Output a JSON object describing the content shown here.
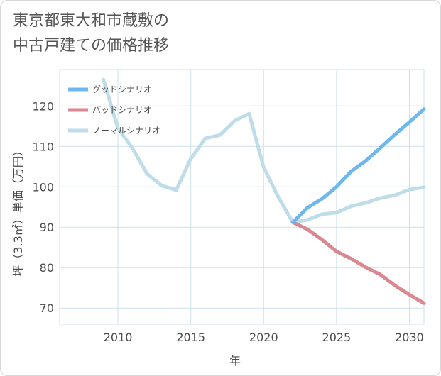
{
  "title_lines": [
    "東京都東大和市蔵敷の",
    "中古戸建ての価格推移"
  ],
  "chart_data": {
    "type": "line",
    "title": "東京都東大和市蔵敷の中古戸建ての価格推移",
    "xlabel": "年",
    "ylabel": "坪（3.3㎡）単価（万円）",
    "xlim": [
      2006,
      2031
    ],
    "ylim": [
      66,
      129
    ],
    "xticks": [
      2010,
      2015,
      2020,
      2025,
      2030
    ],
    "yticks": [
      70,
      80,
      90,
      100,
      110,
      120
    ],
    "grid": true,
    "legend_position": "top-left",
    "series": [
      {
        "name": "グッドシナリオ",
        "color": "#6db8ec",
        "x": [
          2022,
          2023,
          2024,
          2025,
          2026,
          2027,
          2028,
          2029,
          2030,
          2031
        ],
        "y": [
          91.2,
          94.8,
          97.0,
          100.0,
          103.8,
          106.4,
          109.6,
          112.9,
          116.0,
          119.2
        ]
      },
      {
        "name": "バッドシナリオ",
        "color": "#d98890",
        "x": [
          2022,
          2023,
          2024,
          2025,
          2026,
          2027,
          2028,
          2029,
          2030,
          2031
        ],
        "y": [
          91.2,
          89.5,
          86.9,
          84.0,
          82.2,
          80.1,
          78.3,
          75.6,
          73.3,
          71.2
        ]
      },
      {
        "name": "ノーマルシナリオ",
        "color": "#bfdde9",
        "x": [
          2009,
          2010,
          2011,
          2012,
          2013,
          2014,
          2015,
          2016,
          2017,
          2018,
          2019,
          2020,
          2021,
          2022,
          2023,
          2024,
          2025,
          2026,
          2027,
          2028,
          2029,
          2030,
          2031
        ],
        "y": [
          126.5,
          114.5,
          109.5,
          103.2,
          100.3,
          99.2,
          107.0,
          112.0,
          112.8,
          116.3,
          118.1,
          104.8,
          97.5,
          91.2,
          91.8,
          93.2,
          93.6,
          95.2,
          96.0,
          97.2,
          97.9,
          99.3,
          99.9
        ]
      }
    ]
  }
}
